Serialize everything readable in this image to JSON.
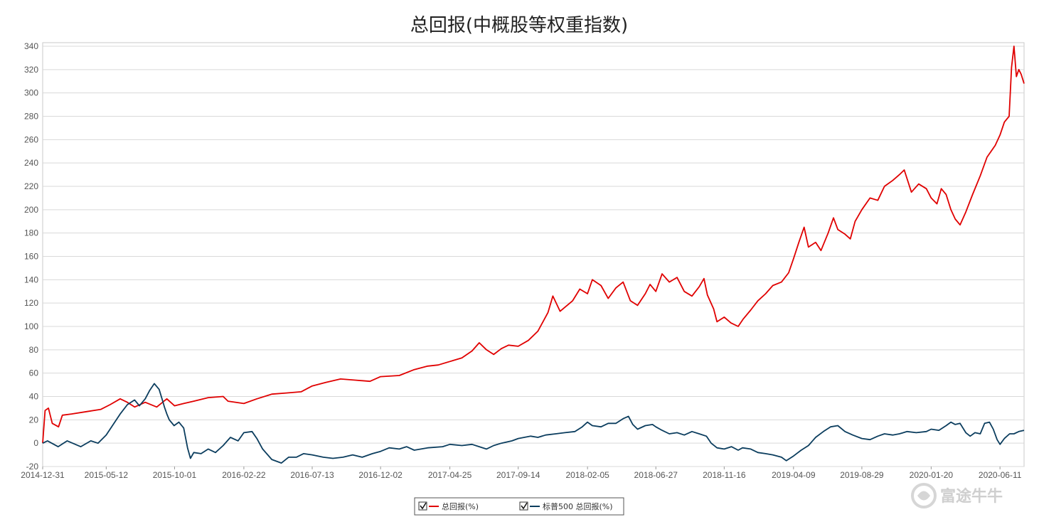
{
  "chart_data": {
    "type": "line",
    "title": "总回报(中概股等权重指数)",
    "ylim": [
      -20,
      340
    ],
    "yticks": [
      -20,
      0,
      20,
      40,
      60,
      80,
      100,
      120,
      140,
      160,
      180,
      200,
      220,
      240,
      260,
      280,
      300,
      320,
      340
    ],
    "xlim": [
      "2014-12-31",
      "2020-07-31"
    ],
    "xticks": [
      "2014-12-31",
      "2015-05-12",
      "2015-10-01",
      "2016-02-22",
      "2016-07-13",
      "2016-12-02",
      "2017-04-25",
      "2017-09-14",
      "2018-02-05",
      "2018-06-27",
      "2018-11-16",
      "2019-04-09",
      "2019-08-29",
      "2020-01-20",
      "2020-06-11"
    ],
    "grid": true,
    "legend_position": "bottom-center",
    "series": [
      {
        "name": "总回报(%)",
        "color": "#e00000",
        "points": [
          [
            "2014-12-31",
            0
          ],
          [
            "2015-01-05",
            28
          ],
          [
            "2015-01-12",
            30
          ],
          [
            "2015-01-20",
            17
          ],
          [
            "2015-02-02",
            14
          ],
          [
            "2015-02-10",
            24
          ],
          [
            "2015-03-01",
            25
          ],
          [
            "2015-04-01",
            27
          ],
          [
            "2015-05-01",
            29
          ],
          [
            "2015-05-20",
            33
          ],
          [
            "2015-06-10",
            38
          ],
          [
            "2015-06-25",
            35
          ],
          [
            "2015-07-10",
            31
          ],
          [
            "2015-08-01",
            35
          ],
          [
            "2015-08-25",
            31
          ],
          [
            "2015-09-15",
            38
          ],
          [
            "2015-10-01",
            32
          ],
          [
            "2015-10-20",
            34
          ],
          [
            "2015-11-10",
            36
          ],
          [
            "2015-12-10",
            39
          ],
          [
            "2016-01-10",
            40
          ],
          [
            "2016-01-20",
            36
          ],
          [
            "2016-02-22",
            34
          ],
          [
            "2016-03-20",
            38
          ],
          [
            "2016-04-20",
            42
          ],
          [
            "2016-05-20",
            43
          ],
          [
            "2016-06-20",
            44
          ],
          [
            "2016-07-13",
            49
          ],
          [
            "2016-08-10",
            52
          ],
          [
            "2016-09-10",
            55
          ],
          [
            "2016-10-10",
            54
          ],
          [
            "2016-11-10",
            53
          ],
          [
            "2016-12-02",
            57
          ],
          [
            "2017-01-10",
            58
          ],
          [
            "2017-02-10",
            63
          ],
          [
            "2017-03-10",
            66
          ],
          [
            "2017-04-01",
            67
          ],
          [
            "2017-04-25",
            70
          ],
          [
            "2017-05-20",
            73
          ],
          [
            "2017-06-10",
            79
          ],
          [
            "2017-06-25",
            86
          ],
          [
            "2017-07-10",
            80
          ],
          [
            "2017-07-25",
            76
          ],
          [
            "2017-08-10",
            81
          ],
          [
            "2017-08-25",
            84
          ],
          [
            "2017-09-14",
            83
          ],
          [
            "2017-10-05",
            88
          ],
          [
            "2017-10-25",
            96
          ],
          [
            "2017-11-15",
            112
          ],
          [
            "2017-11-25",
            126
          ],
          [
            "2017-12-10",
            113
          ],
          [
            "2018-01-05",
            122
          ],
          [
            "2018-01-20",
            132
          ],
          [
            "2018-02-05",
            128
          ],
          [
            "2018-02-15",
            140
          ],
          [
            "2018-03-05",
            135
          ],
          [
            "2018-03-20",
            124
          ],
          [
            "2018-04-05",
            133
          ],
          [
            "2018-04-20",
            138
          ],
          [
            "2018-05-05",
            122
          ],
          [
            "2018-05-20",
            118
          ],
          [
            "2018-06-05",
            128
          ],
          [
            "2018-06-15",
            136
          ],
          [
            "2018-06-27",
            130
          ],
          [
            "2018-07-10",
            145
          ],
          [
            "2018-07-25",
            138
          ],
          [
            "2018-08-10",
            142
          ],
          [
            "2018-08-25",
            130
          ],
          [
            "2018-09-10",
            126
          ],
          [
            "2018-09-25",
            134
          ],
          [
            "2018-10-05",
            141
          ],
          [
            "2018-10-12",
            127
          ],
          [
            "2018-10-25",
            115
          ],
          [
            "2018-11-01",
            104
          ],
          [
            "2018-11-16",
            108
          ],
          [
            "2018-11-30",
            103
          ],
          [
            "2018-12-15",
            100
          ],
          [
            "2018-12-25",
            106
          ],
          [
            "2019-01-10",
            114
          ],
          [
            "2019-01-25",
            122
          ],
          [
            "2019-02-10",
            128
          ],
          [
            "2019-02-25",
            135
          ],
          [
            "2019-03-15",
            138
          ],
          [
            "2019-03-30",
            146
          ],
          [
            "2019-04-09",
            158
          ],
          [
            "2019-04-20",
            172
          ],
          [
            "2019-05-01",
            185
          ],
          [
            "2019-05-10",
            168
          ],
          [
            "2019-05-25",
            172
          ],
          [
            "2019-06-05",
            165
          ],
          [
            "2019-06-20",
            180
          ],
          [
            "2019-07-01",
            193
          ],
          [
            "2019-07-10",
            183
          ],
          [
            "2019-07-25",
            179
          ],
          [
            "2019-08-05",
            175
          ],
          [
            "2019-08-15",
            190
          ],
          [
            "2019-08-29",
            200
          ],
          [
            "2019-09-15",
            210
          ],
          [
            "2019-10-01",
            208
          ],
          [
            "2019-10-15",
            220
          ],
          [
            "2019-11-01",
            225
          ],
          [
            "2019-11-15",
            230
          ],
          [
            "2019-11-25",
            234
          ],
          [
            "2019-12-10",
            215
          ],
          [
            "2019-12-25",
            222
          ],
          [
            "2020-01-10",
            218
          ],
          [
            "2020-01-20",
            210
          ],
          [
            "2020-02-01",
            205
          ],
          [
            "2020-02-10",
            218
          ],
          [
            "2020-02-20",
            213
          ],
          [
            "2020-03-01",
            200
          ],
          [
            "2020-03-10",
            192
          ],
          [
            "2020-03-20",
            187
          ],
          [
            "2020-04-01",
            198
          ],
          [
            "2020-04-15",
            213
          ],
          [
            "2020-05-01",
            229
          ],
          [
            "2020-05-15",
            245
          ],
          [
            "2020-06-01",
            255
          ],
          [
            "2020-06-11",
            264
          ],
          [
            "2020-06-20",
            275
          ],
          [
            "2020-06-30",
            280
          ],
          [
            "2020-07-05",
            322
          ],
          [
            "2020-07-10",
            340
          ],
          [
            "2020-07-15",
            314
          ],
          [
            "2020-07-20",
            320
          ],
          [
            "2020-07-25",
            316
          ],
          [
            "2020-07-31",
            308
          ]
        ]
      },
      {
        "name": "标普500 总回报(%)",
        "color": "#0b3d5e",
        "points": [
          [
            "2014-12-31",
            0
          ],
          [
            "2015-01-10",
            2
          ],
          [
            "2015-02-01",
            -3
          ],
          [
            "2015-02-20",
            2
          ],
          [
            "2015-03-20",
            -3
          ],
          [
            "2015-04-10",
            2
          ],
          [
            "2015-04-25",
            0
          ],
          [
            "2015-05-12",
            7
          ],
          [
            "2015-05-25",
            15
          ],
          [
            "2015-06-10",
            25
          ],
          [
            "2015-06-25",
            33
          ],
          [
            "2015-07-10",
            37
          ],
          [
            "2015-07-20",
            32
          ],
          [
            "2015-08-01",
            38
          ],
          [
            "2015-08-10",
            45
          ],
          [
            "2015-08-20",
            51
          ],
          [
            "2015-08-30",
            46
          ],
          [
            "2015-09-05",
            38
          ],
          [
            "2015-09-10",
            31
          ],
          [
            "2015-09-15",
            25
          ],
          [
            "2015-09-20",
            20
          ],
          [
            "2015-09-30",
            15
          ],
          [
            "2015-10-10",
            18
          ],
          [
            "2015-10-20",
            13
          ],
          [
            "2015-10-28",
            -4
          ],
          [
            "2015-11-03",
            -13
          ],
          [
            "2015-11-10",
            -8
          ],
          [
            "2015-11-25",
            -9
          ],
          [
            "2015-12-10",
            -5
          ],
          [
            "2015-12-25",
            -8
          ],
          [
            "2016-01-10",
            -2
          ],
          [
            "2016-01-25",
            5
          ],
          [
            "2016-02-10",
            2
          ],
          [
            "2016-02-22",
            9
          ],
          [
            "2016-03-10",
            10
          ],
          [
            "2016-03-20",
            4
          ],
          [
            "2016-04-01",
            -5
          ],
          [
            "2016-04-20",
            -14
          ],
          [
            "2016-05-10",
            -17
          ],
          [
            "2016-05-25",
            -12
          ],
          [
            "2016-06-10",
            -12
          ],
          [
            "2016-06-25",
            -9
          ],
          [
            "2016-07-13",
            -10
          ],
          [
            "2016-08-05",
            -12
          ],
          [
            "2016-08-25",
            -13
          ],
          [
            "2016-09-15",
            -12
          ],
          [
            "2016-10-05",
            -10
          ],
          [
            "2016-10-25",
            -12
          ],
          [
            "2016-11-15",
            -9
          ],
          [
            "2016-12-02",
            -7
          ],
          [
            "2016-12-20",
            -4
          ],
          [
            "2017-01-10",
            -5
          ],
          [
            "2017-01-25",
            -3
          ],
          [
            "2017-02-10",
            -6
          ],
          [
            "2017-03-10",
            -4
          ],
          [
            "2017-04-10",
            -3
          ],
          [
            "2017-04-25",
            -1
          ],
          [
            "2017-05-20",
            -2
          ],
          [
            "2017-06-10",
            -1
          ],
          [
            "2017-06-25",
            -3
          ],
          [
            "2017-07-10",
            -5
          ],
          [
            "2017-07-25",
            -2
          ],
          [
            "2017-08-10",
            0
          ],
          [
            "2017-09-01",
            2
          ],
          [
            "2017-09-14",
            4
          ],
          [
            "2017-10-10",
            6
          ],
          [
            "2017-10-25",
            5
          ],
          [
            "2017-11-10",
            7
          ],
          [
            "2017-12-01",
            8
          ],
          [
            "2017-12-20",
            9
          ],
          [
            "2018-01-10",
            10
          ],
          [
            "2018-01-25",
            14
          ],
          [
            "2018-02-05",
            18
          ],
          [
            "2018-02-15",
            15
          ],
          [
            "2018-03-05",
            14
          ],
          [
            "2018-03-20",
            17
          ],
          [
            "2018-04-05",
            17
          ],
          [
            "2018-04-20",
            21
          ],
          [
            "2018-05-01",
            23
          ],
          [
            "2018-05-10",
            16
          ],
          [
            "2018-05-20",
            12
          ],
          [
            "2018-06-05",
            15
          ],
          [
            "2018-06-20",
            16
          ],
          [
            "2018-06-27",
            14
          ],
          [
            "2018-07-10",
            11
          ],
          [
            "2018-07-25",
            8
          ],
          [
            "2018-08-10",
            9
          ],
          [
            "2018-08-25",
            7
          ],
          [
            "2018-09-10",
            10
          ],
          [
            "2018-09-25",
            8
          ],
          [
            "2018-10-10",
            6
          ],
          [
            "2018-10-20",
            0
          ],
          [
            "2018-11-01",
            -4
          ],
          [
            "2018-11-16",
            -5
          ],
          [
            "2018-12-01",
            -3
          ],
          [
            "2018-12-15",
            -6
          ],
          [
            "2018-12-24",
            -4
          ],
          [
            "2019-01-10",
            -5
          ],
          [
            "2019-01-25",
            -8
          ],
          [
            "2019-02-10",
            -9
          ],
          [
            "2019-02-25",
            -10
          ],
          [
            "2019-03-15",
            -12
          ],
          [
            "2019-03-25",
            -15
          ],
          [
            "2019-04-09",
            -11
          ],
          [
            "2019-04-25",
            -6
          ],
          [
            "2019-05-10",
            -2
          ],
          [
            "2019-05-25",
            5
          ],
          [
            "2019-06-10",
            10
          ],
          [
            "2019-06-25",
            14
          ],
          [
            "2019-07-10",
            15
          ],
          [
            "2019-07-25",
            10
          ],
          [
            "2019-08-10",
            7
          ],
          [
            "2019-08-29",
            4
          ],
          [
            "2019-09-15",
            3
          ],
          [
            "2019-10-01",
            6
          ],
          [
            "2019-10-15",
            8
          ],
          [
            "2019-11-01",
            7
          ],
          [
            "2019-11-15",
            8
          ],
          [
            "2019-12-01",
            10
          ],
          [
            "2019-12-20",
            9
          ],
          [
            "2020-01-10",
            10
          ],
          [
            "2020-01-20",
            12
          ],
          [
            "2020-02-05",
            11
          ],
          [
            "2020-02-20",
            15
          ],
          [
            "2020-03-01",
            18
          ],
          [
            "2020-03-10",
            16
          ],
          [
            "2020-03-20",
            17
          ],
          [
            "2020-04-01",
            9
          ],
          [
            "2020-04-10",
            6
          ],
          [
            "2020-04-20",
            9
          ],
          [
            "2020-05-01",
            8
          ],
          [
            "2020-05-10",
            17
          ],
          [
            "2020-05-20",
            18
          ],
          [
            "2020-05-28",
            12
          ],
          [
            "2020-06-05",
            3
          ],
          [
            "2020-06-11",
            -1
          ],
          [
            "2020-06-20",
            4
          ],
          [
            "2020-07-01",
            8
          ],
          [
            "2020-07-10",
            8
          ],
          [
            "2020-07-20",
            10
          ],
          [
            "2020-07-31",
            11
          ]
        ]
      }
    ]
  },
  "watermark": {
    "text": "富途牛牛"
  },
  "icons": {
    "legend_checkbox": "checkbox-checked-icon",
    "watermark_logo": "futu-logo-icon"
  }
}
